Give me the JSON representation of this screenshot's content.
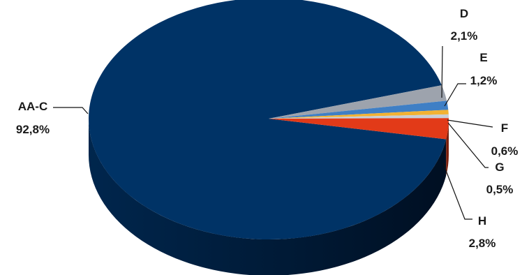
{
  "chart_data": {
    "type": "pie",
    "style": "3d",
    "legend": "none",
    "slices": [
      {
        "name": "AA-C",
        "value": 92.8,
        "label": "92,8%",
        "color": "#003366"
      },
      {
        "name": "D",
        "value": 2.1,
        "label": "2,1%",
        "color": "#9DA3AD"
      },
      {
        "name": "E",
        "value": 1.2,
        "label": "1,2%",
        "color": "#3F7FC5"
      },
      {
        "name": "F",
        "value": 0.6,
        "label": "0,6%",
        "color": "#F2B233"
      },
      {
        "name": "G",
        "value": 0.5,
        "label": "0,5%",
        "color": "#C9CED6"
      },
      {
        "name": "H",
        "value": 2.8,
        "label": "2,8%",
        "color": "#E23A18"
      }
    ]
  }
}
